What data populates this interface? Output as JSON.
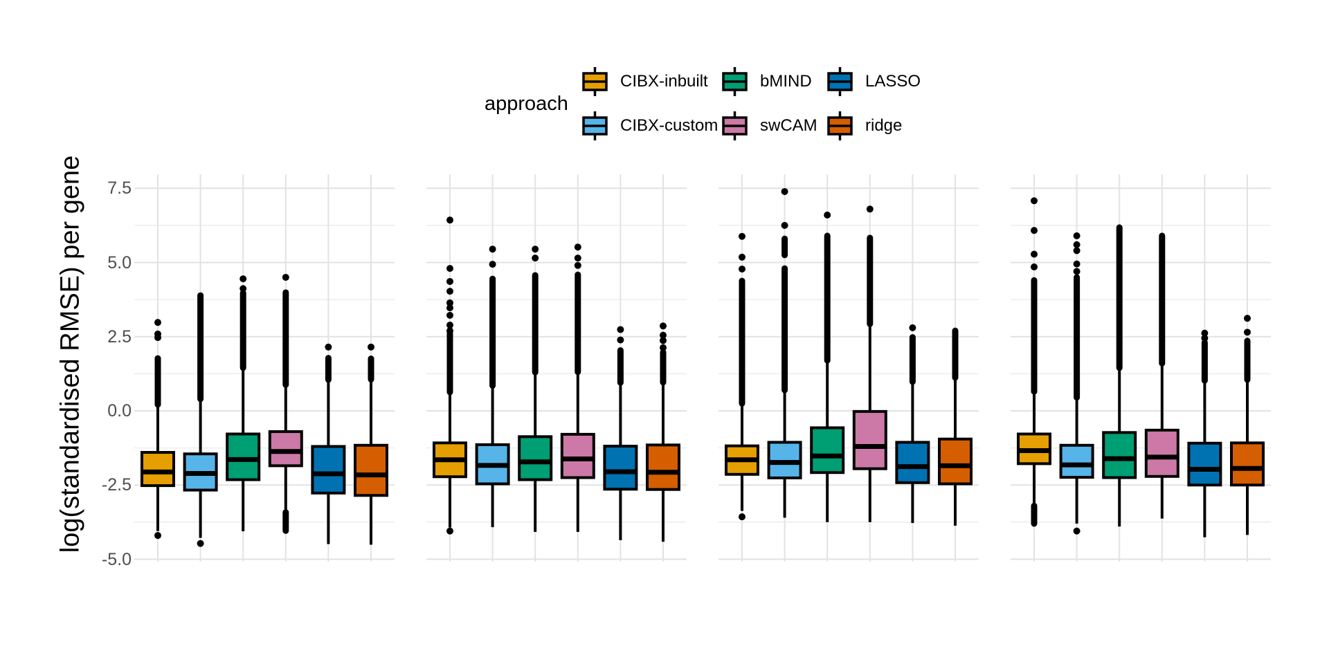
{
  "legend": {
    "title": "approach",
    "items": [
      {
        "label": "CIBX-inbuilt",
        "color": "#E69F00"
      },
      {
        "label": "CIBX-custom",
        "color": "#56B4E9"
      },
      {
        "label": "bMIND",
        "color": "#009E73"
      },
      {
        "label": "swCAM",
        "color": "#CC79A7"
      },
      {
        "label": "LASSO",
        "color": "#0072B2"
      },
      {
        "label": "ridge",
        "color": "#D55E00"
      }
    ]
  },
  "y_axis": {
    "tick_labels": [
      "7.5",
      "5.0",
      "2.5",
      "0.0",
      "-2.5",
      "-5.0"
    ],
    "tick_values": [
      7.5,
      5.0,
      2.5,
      0.0,
      -2.5,
      -5.0
    ],
    "minor_values": [
      6.25,
      3.75,
      1.25,
      -1.25,
      -3.75
    ],
    "text_color": "#4d4d4d",
    "grid_major_color": "#E2E2E2",
    "grid_minor_color": "#ECECEC"
  },
  "chart_data": {
    "type": "boxplot",
    "title": "",
    "ylabel": "log(standardised RMSE) per gene",
    "ylim": [
      -5.05,
      8.0
    ],
    "yticks": [
      7.5,
      5.0,
      2.5,
      0.0,
      -2.5,
      -5.0
    ],
    "grid": true,
    "legend_position": "top-center",
    "n_panels": 4,
    "approaches": [
      {
        "name": "CIBX-inbuilt",
        "color": "#E69F00"
      },
      {
        "name": "CIBX-custom",
        "color": "#56B4E9"
      },
      {
        "name": "bMIND",
        "color": "#009E73"
      },
      {
        "name": "swCAM",
        "color": "#CC79A7"
      },
      {
        "name": "LASSO",
        "color": "#0072B2"
      },
      {
        "name": "ridge",
        "color": "#D55E00"
      }
    ],
    "panels": [
      {
        "name": "panel-1",
        "boxes": [
          {
            "approach": "CIBX-inbuilt",
            "whisker_low": -4.05,
            "q1": -2.52,
            "median": -2.06,
            "q3": -1.4,
            "whisker_high": 0.12,
            "outlier_runs_high": [
              [
                0.21,
                1.77
              ]
            ],
            "outlier_dots_high": [
              2.47,
              2.59,
              2.98
            ],
            "outlier_runs_low": [],
            "outlier_dots_low": [
              -4.2
            ]
          },
          {
            "approach": "CIBX-custom",
            "whisker_low": -4.28,
            "q1": -2.67,
            "median": -2.11,
            "q3": -1.45,
            "whisker_high": 0.35,
            "outlier_runs_high": [
              [
                0.4,
                3.89
              ]
            ],
            "outlier_dots_high": [],
            "outlier_runs_low": [],
            "outlier_dots_low": [
              -4.47
            ]
          },
          {
            "approach": "bMIND",
            "whisker_low": -4.06,
            "q1": -2.32,
            "median": -1.64,
            "q3": -0.78,
            "whisker_high": 1.38,
            "outlier_runs_high": [
              [
                1.45,
                3.97
              ]
            ],
            "outlier_dots_high": [
              4.12,
              4.45
            ],
            "outlier_runs_low": [],
            "outlier_dots_low": []
          },
          {
            "approach": "swCAM",
            "whisker_low": -3.34,
            "q1": -1.85,
            "median": -1.37,
            "q3": -0.7,
            "whisker_high": 0.84,
            "outlier_runs_high": [
              [
                0.88,
                3.99
              ]
            ],
            "outlier_dots_high": [
              4.5
            ],
            "outlier_runs_low": [
              [
                -4.04,
                -3.42
              ]
            ],
            "outlier_dots_low": []
          },
          {
            "approach": "LASSO",
            "whisker_low": -4.49,
            "q1": -2.77,
            "median": -2.12,
            "q3": -1.2,
            "whisker_high": 1.01,
            "outlier_runs_high": [
              [
                1.05,
                1.78
              ]
            ],
            "outlier_dots_high": [
              2.15
            ],
            "outlier_runs_low": [],
            "outlier_dots_low": []
          },
          {
            "approach": "ridge",
            "whisker_low": -4.51,
            "q1": -2.85,
            "median": -2.16,
            "q3": -1.16,
            "whisker_high": 1.02,
            "outlier_runs_high": [
              [
                1.06,
                1.76
              ]
            ],
            "outlier_dots_high": [
              2.15
            ],
            "outlier_runs_low": [],
            "outlier_dots_low": []
          }
        ]
      },
      {
        "name": "panel-2",
        "boxes": [
          {
            "approach": "CIBX-inbuilt",
            "whisker_low": -3.93,
            "q1": -2.22,
            "median": -1.65,
            "q3": -1.08,
            "whisker_high": 0.56,
            "outlier_runs_high": [
              [
                0.63,
                2.61
              ]
            ],
            "outlier_dots_high": [
              2.7,
              2.89,
              3.22,
              3.47,
              3.64,
              4.03,
              4.36,
              4.8,
              6.43
            ],
            "outlier_runs_low": [],
            "outlier_dots_low": [
              -4.05
            ]
          },
          {
            "approach": "CIBX-custom",
            "whisker_low": -3.92,
            "q1": -2.46,
            "median": -1.84,
            "q3": -1.14,
            "whisker_high": 0.8,
            "outlier_runs_high": [
              [
                0.85,
                4.45
              ]
            ],
            "outlier_dots_high": [
              4.94,
              5.45
            ],
            "outlier_runs_low": [],
            "outlier_dots_low": []
          },
          {
            "approach": "bMIND",
            "whisker_low": -4.08,
            "q1": -2.32,
            "median": -1.72,
            "q3": -0.87,
            "whisker_high": 1.25,
            "outlier_runs_high": [
              [
                1.3,
                4.57
              ]
            ],
            "outlier_dots_high": [
              5.15,
              5.45
            ],
            "outlier_runs_low": [],
            "outlier_dots_low": []
          },
          {
            "approach": "swCAM",
            "whisker_low": -4.08,
            "q1": -2.25,
            "median": -1.62,
            "q3": -0.79,
            "whisker_high": 1.26,
            "outlier_runs_high": [
              [
                1.31,
                4.59
              ]
            ],
            "outlier_dots_high": [
              4.9,
              5.15,
              5.52
            ],
            "outlier_runs_low": [],
            "outlier_dots_low": []
          },
          {
            "approach": "LASSO",
            "whisker_low": -4.36,
            "q1": -2.64,
            "median": -2.05,
            "q3": -1.19,
            "whisker_high": 0.9,
            "outlier_runs_high": [
              [
                0.95,
                2.04
              ]
            ],
            "outlier_dots_high": [
              2.39,
              2.74
            ],
            "outlier_runs_low": [],
            "outlier_dots_low": []
          },
          {
            "approach": "ridge",
            "whisker_low": -4.41,
            "q1": -2.65,
            "median": -2.07,
            "q3": -1.15,
            "whisker_high": 0.9,
            "outlier_runs_high": [
              [
                0.96,
                1.97
              ]
            ],
            "outlier_dots_high": [
              2.13,
              2.37,
              2.55,
              2.86
            ],
            "outlier_runs_low": [],
            "outlier_dots_low": []
          }
        ]
      },
      {
        "name": "panel-3",
        "boxes": [
          {
            "approach": "CIBX-inbuilt",
            "whisker_low": -3.37,
            "q1": -2.14,
            "median": -1.65,
            "q3": -1.18,
            "whisker_high": 0.2,
            "outlier_runs_high": [
              [
                0.25,
                4.38
              ]
            ],
            "outlier_dots_high": [
              4.78,
              5.18,
              5.88
            ],
            "outlier_runs_low": [],
            "outlier_dots_low": [
              -3.57
            ]
          },
          {
            "approach": "CIBX-custom",
            "whisker_low": -3.6,
            "q1": -2.26,
            "median": -1.74,
            "q3": -1.06,
            "whisker_high": 0.62,
            "outlier_runs_high": [
              [
                0.7,
                4.8
              ],
              [
                5.25,
                5.8
              ]
            ],
            "outlier_dots_high": [
              6.25,
              7.39
            ],
            "outlier_runs_low": [],
            "outlier_dots_low": []
          },
          {
            "approach": "bMIND",
            "whisker_low": -3.75,
            "q1": -2.08,
            "median": -1.52,
            "q3": -0.57,
            "whisker_high": 1.63,
            "outlier_runs_high": [
              [
                1.7,
                5.9
              ]
            ],
            "outlier_dots_high": [
              6.6
            ],
            "outlier_runs_low": [],
            "outlier_dots_low": []
          },
          {
            "approach": "swCAM",
            "whisker_low": -3.75,
            "q1": -1.95,
            "median": -1.2,
            "q3": -0.02,
            "whisker_high": 2.88,
            "outlier_runs_high": [
              [
                2.93,
                5.83
              ]
            ],
            "outlier_dots_high": [
              6.8
            ],
            "outlier_runs_low": [],
            "outlier_dots_low": []
          },
          {
            "approach": "LASSO",
            "whisker_low": -3.78,
            "q1": -2.42,
            "median": -1.88,
            "q3": -1.06,
            "whisker_high": 0.94,
            "outlier_runs_high": [
              [
                0.98,
                2.48
              ]
            ],
            "outlier_dots_high": [
              2.8
            ],
            "outlier_runs_low": [],
            "outlier_dots_low": []
          },
          {
            "approach": "ridge",
            "whisker_low": -3.87,
            "q1": -2.46,
            "median": -1.85,
            "q3": -0.95,
            "whisker_high": 1.08,
            "outlier_runs_high": [
              [
                1.12,
                2.7
              ]
            ],
            "outlier_dots_high": [],
            "outlier_runs_low": [],
            "outlier_dots_low": []
          }
        ]
      },
      {
        "name": "panel-4",
        "boxes": [
          {
            "approach": "CIBX-inbuilt",
            "whisker_low": -3.1,
            "q1": -1.78,
            "median": -1.34,
            "q3": -0.78,
            "whisker_high": 0.6,
            "outlier_runs_high": [
              [
                0.65,
                4.4
              ]
            ],
            "outlier_dots_high": [
              4.85,
              5.28,
              6.08,
              7.08
            ],
            "outlier_runs_low": [
              [
                -3.8,
                -3.2
              ]
            ],
            "outlier_dots_low": []
          },
          {
            "approach": "CIBX-custom",
            "whisker_low": -3.8,
            "q1": -2.24,
            "median": -1.82,
            "q3": -1.16,
            "whisker_high": 0.4,
            "outlier_runs_high": [
              [
                0.45,
                4.5
              ]
            ],
            "outlier_dots_high": [
              4.7,
              4.95,
              5.4,
              5.6,
              5.9
            ],
            "outlier_runs_low": [],
            "outlier_dots_low": [
              -4.05
            ]
          },
          {
            "approach": "bMIND",
            "whisker_low": -3.9,
            "q1": -2.25,
            "median": -1.61,
            "q3": -0.73,
            "whisker_high": 1.4,
            "outlier_runs_high": [
              [
                1.45,
                6.18
              ]
            ],
            "outlier_dots_high": [],
            "outlier_runs_low": [],
            "outlier_dots_low": []
          },
          {
            "approach": "swCAM",
            "whisker_low": -3.63,
            "q1": -2.21,
            "median": -1.56,
            "q3": -0.65,
            "whisker_high": 1.55,
            "outlier_runs_high": [
              [
                1.6,
                5.9
              ]
            ],
            "outlier_dots_high": [],
            "outlier_runs_low": [],
            "outlier_dots_low": []
          },
          {
            "approach": "LASSO",
            "whisker_low": -4.26,
            "q1": -2.5,
            "median": -1.97,
            "q3": -1.09,
            "whisker_high": 0.98,
            "outlier_runs_high": [
              [
                1.02,
                2.3
              ]
            ],
            "outlier_dots_high": [
              2.45,
              2.62
            ],
            "outlier_runs_low": [],
            "outlier_dots_low": []
          },
          {
            "approach": "ridge",
            "whisker_low": -4.18,
            "q1": -2.5,
            "median": -1.94,
            "q3": -1.08,
            "whisker_high": 1.0,
            "outlier_runs_high": [
              [
                1.05,
                2.36
              ]
            ],
            "outlier_dots_high": [
              2.65,
              3.12
            ],
            "outlier_runs_low": [],
            "outlier_dots_low": []
          }
        ]
      }
    ]
  }
}
